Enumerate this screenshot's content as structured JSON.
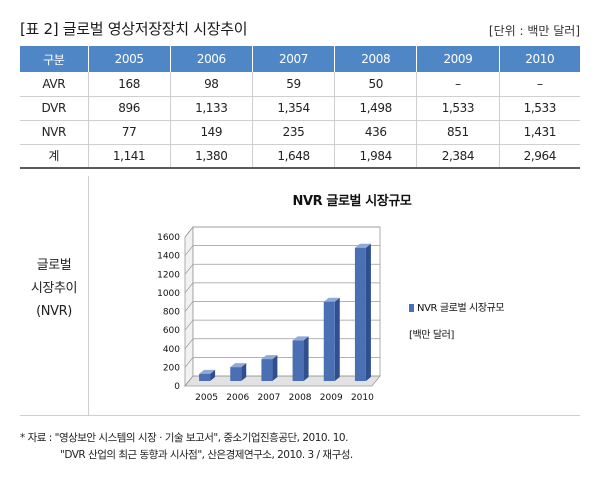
{
  "header": {
    "title": "[표 2] 글로벌 영상저장장치 시장추이",
    "unit": "[단위 : 백만 달러]"
  },
  "table": {
    "headers": [
      "구분",
      "2005",
      "2006",
      "2007",
      "2008",
      "2009",
      "2010"
    ],
    "rows": [
      [
        "AVR",
        "168",
        "98",
        "59",
        "50",
        "–",
        "–"
      ],
      [
        "DVR",
        "896",
        "1,133",
        "1,354",
        "1,498",
        "1,533",
        "1,533"
      ],
      [
        "NVR",
        "77",
        "149",
        "235",
        "436",
        "851",
        "1,431"
      ],
      [
        "계",
        "1,141",
        "1,380",
        "1,648",
        "1,984",
        "2,384",
        "2,964"
      ]
    ]
  },
  "panel": {
    "side_label_lines": [
      "글로벌",
      "시장추이",
      "(NVR)"
    ]
  },
  "chart_data": {
    "type": "bar",
    "title": "NVR 글로벌 시장규모",
    "categories": [
      "2005",
      "2006",
      "2007",
      "2008",
      "2009",
      "2010"
    ],
    "series": [
      {
        "name": "NVR 글로벌 시장규모",
        "values": [
          77,
          149,
          235,
          436,
          851,
          1431
        ]
      }
    ],
    "ylim": [
      0,
      1600
    ],
    "yticks": [
      "0",
      "200",
      "400",
      "600",
      "800",
      "1000",
      "1200",
      "1400",
      "1600"
    ],
    "legend_position": "right",
    "legend_note": "[백만 달러]",
    "grid": true,
    "bar_color": "#4a6fb3"
  },
  "source": {
    "line1": "* 자료 : \"영상보안 시스템의 시장 · 기술 보고서\", 중소기업진흥공단, 2010. 10.",
    "line2": "\"DVR 산업의 최근 동향과 시사점\", 산은경제연구소, 2010. 3 / 재구성."
  }
}
